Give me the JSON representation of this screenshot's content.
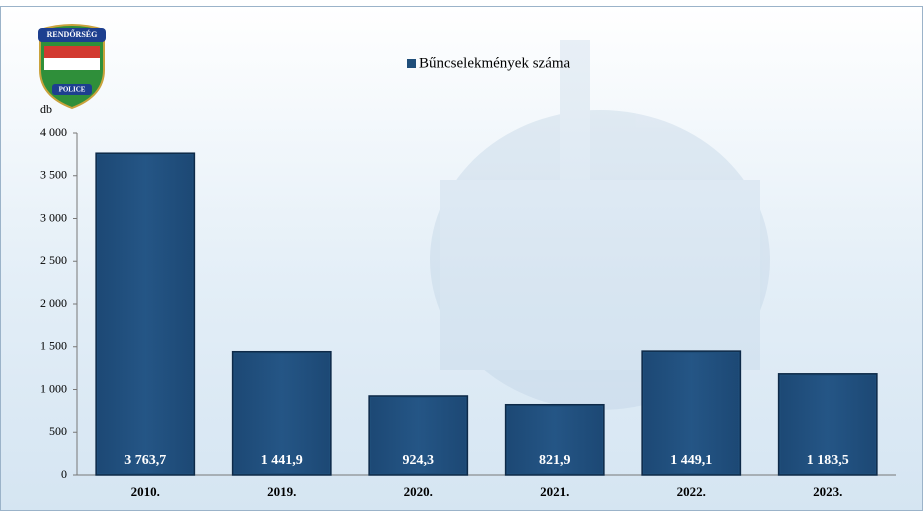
{
  "chart_data": {
    "type": "bar",
    "legend_label": "Bűncselekmények száma",
    "y_label": "db",
    "logo_text": [
      "RENDŐRSÉG",
      "POLICE"
    ],
    "categories": [
      "2010.",
      "2019.",
      "2020.",
      "2021.",
      "2022.",
      "2023."
    ],
    "values": [
      3763.7,
      1441.9,
      924.3,
      821.9,
      1449.1,
      1183.5
    ],
    "value_labels": [
      "3 763,7",
      "1 441,9",
      "924,3",
      "821,9",
      "1 449,1",
      "1 183,5"
    ],
    "color": "#1f4e7a",
    "ylim": [
      0,
      4000
    ],
    "yticks": [
      0,
      500,
      {
        "value": 1000,
        "label": "1 000"
      },
      {
        "value": 1500,
        "label": "1 500"
      },
      {
        "value": 2000,
        "label": "2 000"
      },
      {
        "value": 2500,
        "label": "2 500"
      },
      {
        "value": 3000,
        "label": "3 000"
      },
      {
        "value": 3500,
        "label": "3 500"
      },
      {
        "value": 4000,
        "label": "4 000"
      }
    ],
    "grid": false
  }
}
